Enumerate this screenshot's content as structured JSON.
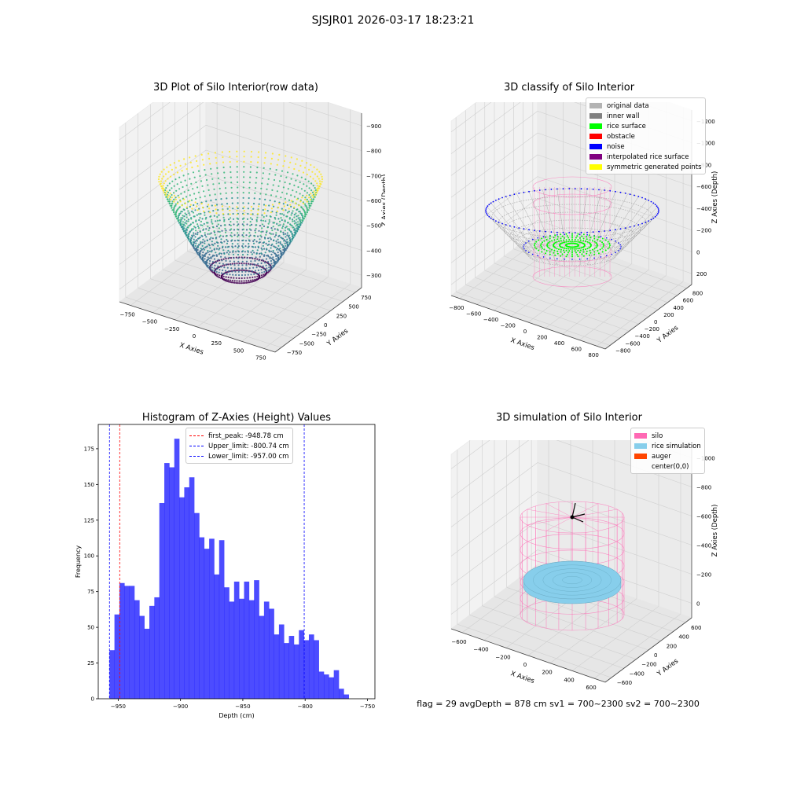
{
  "figure": {
    "suptitle": "SJSJR01 2026-03-17 18:23:21",
    "footer": "flag = 29  avgDepth = 878 cm  sv1 = 700~2300  sv2 = 700~2300"
  },
  "panels": {
    "raw": {
      "title": "3D Plot of Silo Interior(row data)",
      "xlabel": "X Axies",
      "ylabel": "Y Axies",
      "zlabel": "Z Axies (Depth)",
      "xticks": [
        "−750",
        "−500",
        "−250",
        "0",
        "250",
        "500",
        "750"
      ],
      "yticks": [
        "−750",
        "−500",
        "−250",
        "0",
        "250",
        "500",
        "750"
      ],
      "zticks": [
        "−300",
        "−400",
        "−500",
        "−600",
        "−700",
        "−800",
        "−900"
      ],
      "colormap": [
        "#440154",
        "#31688e",
        "#21918c",
        "#35b779",
        "#fde725"
      ]
    },
    "classify": {
      "title": "3D classify of Silo Interior",
      "xlabel": "X Axies",
      "ylabel": "Y Axies",
      "zlabel": "Z Axies (Depth)",
      "xticks": [
        "−800",
        "−600",
        "−400",
        "−200",
        "0",
        "200",
        "400",
        "600",
        "800"
      ],
      "yticks": [
        "−800",
        "−600",
        "−400",
        "−200",
        "0",
        "200",
        "400",
        "600",
        "800"
      ],
      "zticks": [
        "200",
        "0",
        "−200",
        "−400",
        "−600",
        "−800",
        "−1000",
        "−1200"
      ],
      "legend": [
        {
          "label": "original data",
          "color": "#b3b3b3"
        },
        {
          "label": "inner wall",
          "color": "#808080"
        },
        {
          "label": "rice surface",
          "color": "#00ff00"
        },
        {
          "label": "obstacle",
          "color": "#ff0000"
        },
        {
          "label": "noise",
          "color": "#0000ff"
        },
        {
          "label": "interpolated rice surface",
          "color": "#800080"
        },
        {
          "label": "symmetric generated points",
          "color": "#ffff00"
        }
      ]
    },
    "simulation": {
      "title": "3D simulation of Silo Interior",
      "xlabel": "X Axies",
      "ylabel": "Y Axies",
      "zlabel": "Z Axies (Depth)",
      "xticks": [
        "−600",
        "−400",
        "−200",
        "0",
        "200",
        "400",
        "600"
      ],
      "yticks": [
        "−600",
        "−400",
        "−200",
        "0",
        "200",
        "400",
        "600"
      ],
      "zticks": [
        "0",
        "−200",
        "−400",
        "−600",
        "−800",
        "−1000"
      ],
      "legend": [
        {
          "label": "silo",
          "color": "#ff69b4"
        },
        {
          "label": "rice simulation",
          "color": "#87ceeb"
        },
        {
          "label": "auger",
          "color": "#ff4500"
        },
        {
          "label": "center(0,0)",
          "color": ""
        }
      ]
    }
  },
  "chart_data": [
    {
      "type": "histogram",
      "title": "Histogram of Z-Axies (Height) Values",
      "xlabel": "Depth (cm)",
      "ylabel": "Frequency",
      "xlim": [
        -966,
        -744
      ],
      "ylim": [
        0,
        192
      ],
      "xticks": [
        -950,
        -900,
        -850,
        -800,
        -750
      ],
      "xtick_labels": [
        "−950",
        "−900",
        "−850",
        "−800",
        "−750"
      ],
      "yticks": [
        0,
        25,
        50,
        75,
        100,
        125,
        150,
        175
      ],
      "bin_start": -957.0,
      "bin_width": 4.0,
      "counts": [
        34,
        59,
        81,
        79,
        79,
        69,
        58,
        49,
        65,
        71,
        137,
        165,
        162,
        182,
        141,
        148,
        155,
        130,
        113,
        105,
        112,
        87,
        111,
        78,
        68,
        82,
        70,
        82,
        69,
        83,
        58,
        68,
        63,
        45,
        52,
        39,
        44,
        38,
        48,
        41,
        45,
        41,
        19,
        17,
        15,
        20,
        7,
        3
      ],
      "bar_color": "#0000ff",
      "bar_alpha": 0.7,
      "vlines": [
        {
          "label": "first_peak: -948.78 cm",
          "x": -948.78,
          "color": "#ff0000"
        },
        {
          "label": "Upper_limit: -800.74 cm",
          "x": -800.74,
          "color": "#0000ff"
        },
        {
          "label": "Lower_limit: -957.00 cm",
          "x": -957.0,
          "color": "#0000ff"
        }
      ]
    }
  ]
}
